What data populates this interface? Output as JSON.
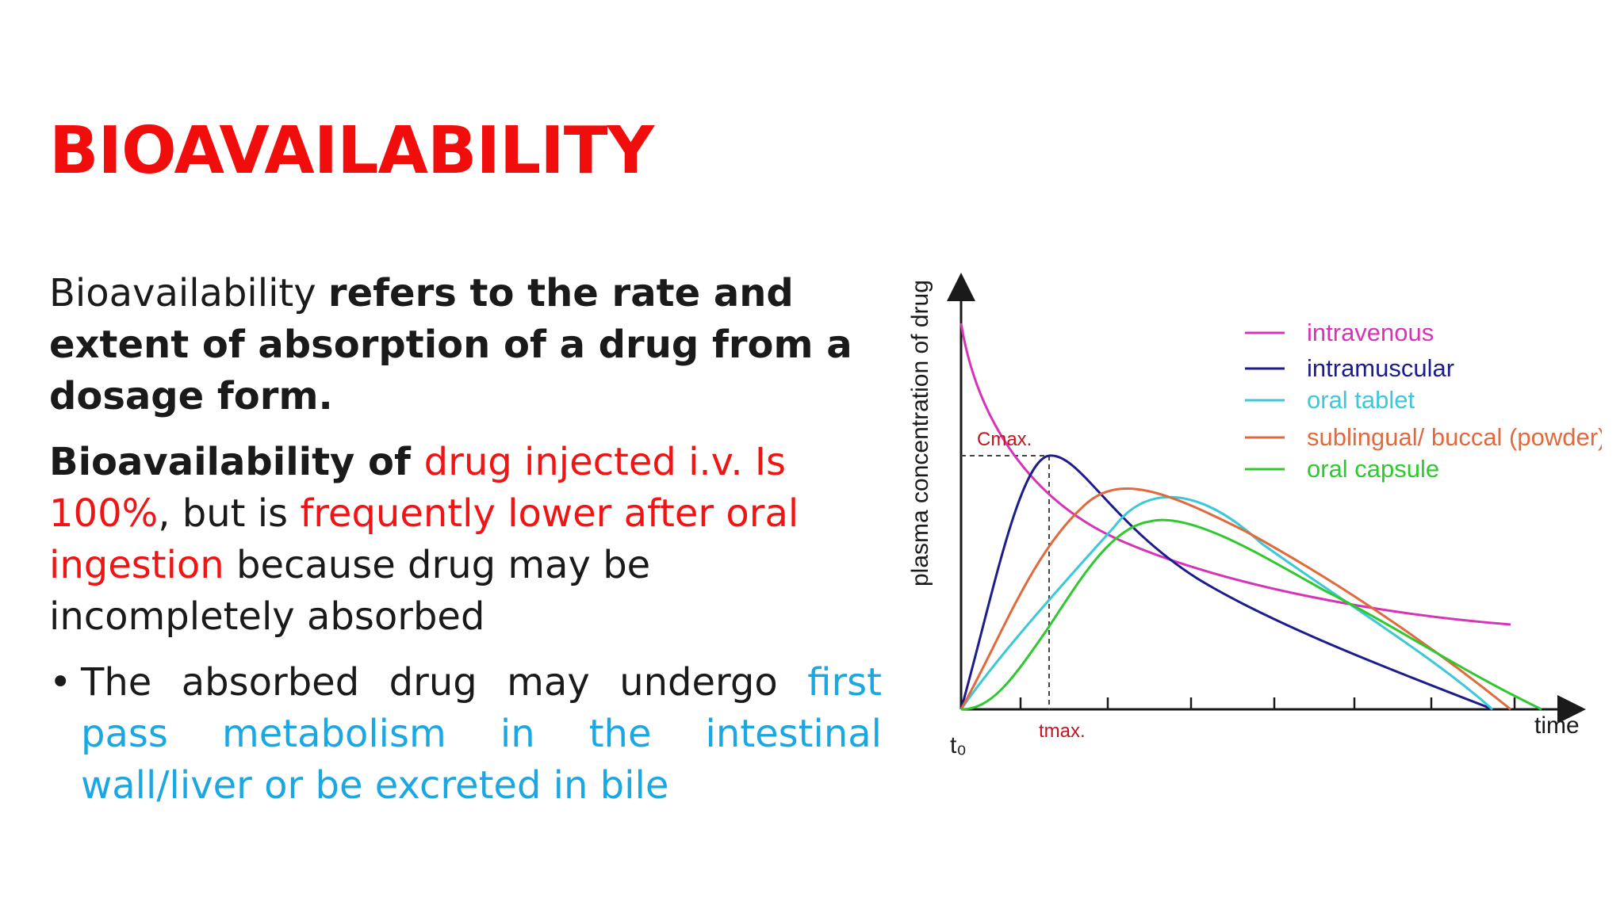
{
  "slide": {
    "title": "BIOAVAILABILITY",
    "para1": {
      "plain": "Bioavailability ",
      "bold": "refers to the rate and extent of absorption of a drug from a dosage form."
    },
    "para2": {
      "bold": "Bioavailability of ",
      "red1": "drug injected i.v. Is 100%",
      "plain1": ", but is ",
      "red2": "frequently lower after oral ingestion",
      "plain2": " because drug may be incompletely absorbed"
    },
    "bullet": {
      "marker": "•",
      "plain": "The absorbed drug may undergo ",
      "blue": "first pass metabolism in the intestinal wall/liver or be excreted in bile"
    }
  },
  "chart_data": {
    "type": "line",
    "ylabel": "plasma concentration of drug",
    "xlabel": "time",
    "x_origin_label": "t₀",
    "tmax_label": "tmax.",
    "cmax_label": "Cmax.",
    "legend_position": "top-right",
    "series": [
      {
        "name": "intravenous",
        "color": "#d633b8"
      },
      {
        "name": "intramuscular",
        "color": "#1c1c8c"
      },
      {
        "name": "oral tablet",
        "color": "#3cc8d8"
      },
      {
        "name": "sublingual/ buccal (powder)",
        "color": "#e06a3c"
      },
      {
        "name": "oral capsule",
        "color": "#2fc82f"
      }
    ]
  }
}
